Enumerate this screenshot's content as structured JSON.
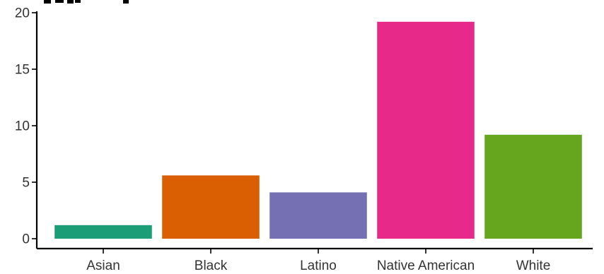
{
  "chart_data": {
    "type": "bar",
    "title": "",
    "xlabel": "",
    "ylabel": "",
    "categories": [
      "Asian",
      "Black",
      "Latino",
      "Native American",
      "White"
    ],
    "values": [
      1.2,
      5.6,
      4.1,
      19.2,
      9.2
    ],
    "colors": [
      "#1b9e77",
      "#d95f02",
      "#7570b3",
      "#e7298a",
      "#66a61e"
    ],
    "ylim": [
      0,
      20
    ],
    "yticks": [
      0,
      5,
      10,
      15,
      20
    ],
    "grid": false,
    "legend": "none"
  }
}
